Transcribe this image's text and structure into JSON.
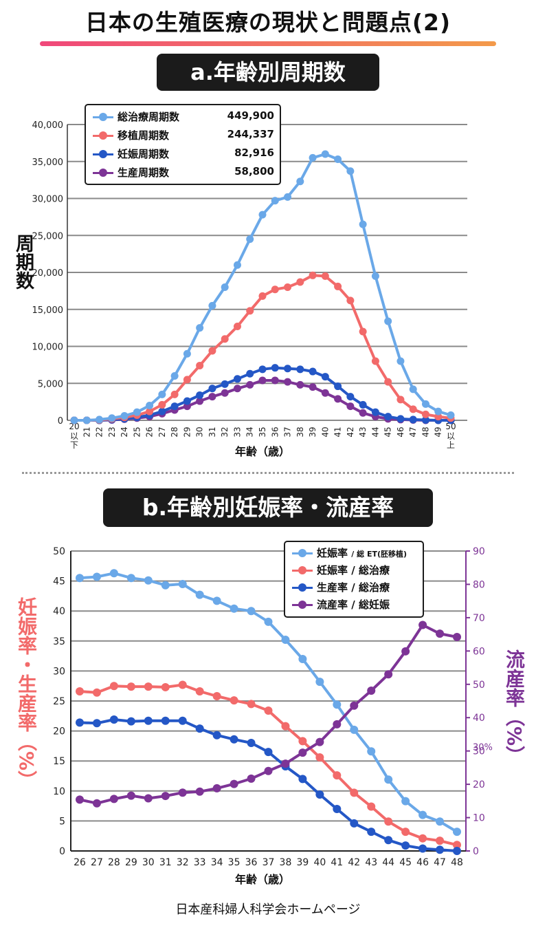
{
  "page": {
    "title": "日本の生殖医療の現状と問題点(2)",
    "footer": "日本産科婦人科学会ホームページ"
  },
  "chart_data": [
    {
      "type": "line",
      "title": "a.年齢別周期数",
      "xlabel": "年齢（歳）",
      "ylabel": "周期数",
      "categories": [
        "20以下",
        "21",
        "22",
        "23",
        "24",
        "25",
        "26",
        "27",
        "28",
        "29",
        "30",
        "31",
        "32",
        "33",
        "34",
        "35",
        "36",
        "37",
        "38",
        "39",
        "40",
        "41",
        "42",
        "43",
        "44",
        "45",
        "46",
        "47",
        "48",
        "49",
        "50以上"
      ],
      "ylim": [
        0,
        40000
      ],
      "yticks": [
        "0",
        "5,000",
        "10,000",
        "15,000",
        "20,000",
        "25,000",
        "30,000",
        "35,000",
        "40,000"
      ],
      "grid": true,
      "legend_position": "top-left",
      "series": [
        {
          "name": "総治療周期数",
          "total": "449,900",
          "color": "#6aa8e8",
          "values": [
            0,
            0,
            100,
            300,
            600,
            1100,
            2000,
            3500,
            6000,
            9000,
            12500,
            15500,
            18000,
            21000,
            24500,
            27800,
            29700,
            30200,
            32300,
            35500,
            36000,
            35300,
            33700,
            26500,
            19500,
            13400,
            8000,
            4200,
            2200,
            1200,
            700
          ]
        },
        {
          "name": "移植周期数",
          "total": "244,337",
          "color": "#f26a6a",
          "values": [
            0,
            0,
            50,
            200,
            400,
            700,
            1200,
            2100,
            3500,
            5500,
            7400,
            9400,
            11000,
            12700,
            14800,
            16800,
            17700,
            18000,
            18700,
            19600,
            19500,
            18100,
            16200,
            12000,
            8000,
            5200,
            2800,
            1500,
            800,
            500,
            300
          ]
        },
        {
          "name": "妊娠周期数",
          "total": "82,916",
          "color": "#2457c6",
          "values": [
            0,
            0,
            0,
            100,
            200,
            400,
            700,
            1200,
            1900,
            2600,
            3400,
            4300,
            4900,
            5600,
            6300,
            6900,
            7100,
            7000,
            6900,
            6600,
            5900,
            4600,
            3200,
            2100,
            1100,
            500,
            200,
            100,
            50,
            0,
            0
          ]
        },
        {
          "name": "生産周期数",
          "total": "58,800",
          "color": "#7d3496",
          "values": [
            0,
            0,
            0,
            50,
            150,
            300,
            500,
            900,
            1400,
            1900,
            2600,
            3200,
            3700,
            4300,
            4800,
            5400,
            5400,
            5200,
            4800,
            4500,
            3700,
            2900,
            1900,
            1000,
            500,
            200,
            100,
            50,
            0,
            0,
            0
          ]
        }
      ]
    },
    {
      "type": "line",
      "title": "b.年齢別妊娠率・流産率",
      "xlabel": "年齢（歳）",
      "ylabel_left": "妊娠率・生産率（%）",
      "ylabel_right": "流産率（%）",
      "categories": [
        "26",
        "27",
        "28",
        "29",
        "30",
        "31",
        "32",
        "33",
        "34",
        "35",
        "36",
        "37",
        "38",
        "39",
        "40",
        "41",
        "42",
        "43",
        "44",
        "45",
        "46",
        "47",
        "48"
      ],
      "ylim_left": [
        0,
        50
      ],
      "ylim_right": [
        0,
        90
      ],
      "right_axis_annotation": "30%",
      "grid": true,
      "legend_position": "top-right",
      "series": [
        {
          "name": "妊娠率",
          "denominator": "総 ET(胚移植)",
          "axis": "left",
          "color": "#6aa8e8",
          "values": [
            45.5,
            45.7,
            46.3,
            45.5,
            45.1,
            44.3,
            44.5,
            42.7,
            41.7,
            40.4,
            40.0,
            38.2,
            35.2,
            32.0,
            28.2,
            24.4,
            20.2,
            16.6,
            11.9,
            8.3,
            6.0,
            4.9,
            3.2
          ]
        },
        {
          "name": "妊娠率",
          "denominator": "総治療",
          "axis": "left",
          "color": "#f26a6a",
          "values": [
            26.6,
            26.4,
            27.5,
            27.4,
            27.4,
            27.3,
            27.7,
            26.6,
            25.8,
            25.1,
            24.5,
            23.4,
            20.8,
            18.3,
            15.6,
            12.6,
            9.7,
            7.4,
            4.9,
            3.2,
            2.1,
            1.7,
            1.0
          ]
        },
        {
          "name": "生産率",
          "denominator": "総治療",
          "axis": "left",
          "color": "#2457c6",
          "values": [
            21.4,
            21.3,
            21.9,
            21.6,
            21.7,
            21.7,
            21.7,
            20.4,
            19.3,
            18.6,
            18.0,
            16.5,
            14.1,
            12.0,
            9.4,
            7.0,
            4.6,
            3.2,
            1.8,
            0.9,
            0.4,
            0.2,
            0.0
          ]
        },
        {
          "name": "流産率",
          "denominator": "総妊娠",
          "axis": "right",
          "color": "#7d3496",
          "values": [
            15.4,
            14.3,
            15.6,
            16.6,
            15.8,
            16.5,
            17.5,
            17.8,
            18.8,
            20.1,
            21.7,
            24.0,
            26.2,
            29.5,
            32.7,
            38.0,
            43.6,
            48.1,
            53.0,
            59.9,
            67.8,
            65.2,
            64.2
          ]
        }
      ]
    }
  ]
}
